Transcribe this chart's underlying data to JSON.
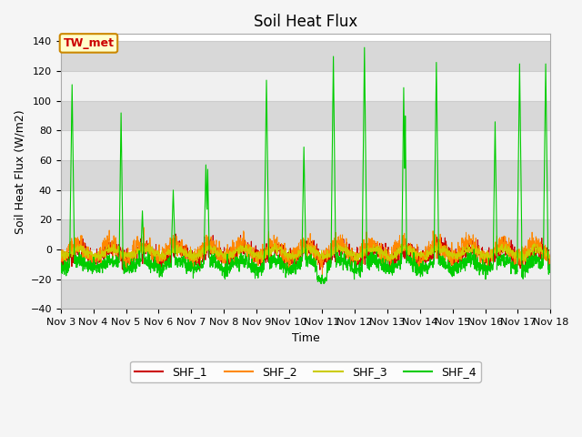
{
  "title": "Soil Heat Flux",
  "ylabel": "Soil Heat Flux (W/m2)",
  "xlabel": "Time",
  "annotation_label": "TW_met",
  "annotation_bg": "#FFFFCC",
  "annotation_border": "#CC8800",
  "annotation_text_color": "#CC0000",
  "ylim": [
    -40,
    145
  ],
  "yticks": [
    -40,
    -20,
    0,
    20,
    40,
    60,
    80,
    100,
    120,
    140
  ],
  "n_days": 15,
  "start_day": 3,
  "series_colors": {
    "SHF_1": "#CC0000",
    "SHF_2": "#FF8800",
    "SHF_3": "#CCCC00",
    "SHF_4": "#00CC00"
  },
  "legend_labels": [
    "SHF_1",
    "SHF_2",
    "SHF_3",
    "SHF_4"
  ],
  "band_colors": [
    "#D8D8D8",
    "#F0F0F0"
  ],
  "grid_color": "#CCCCCC",
  "title_fontsize": 12,
  "label_fontsize": 9,
  "tick_fontsize": 8
}
